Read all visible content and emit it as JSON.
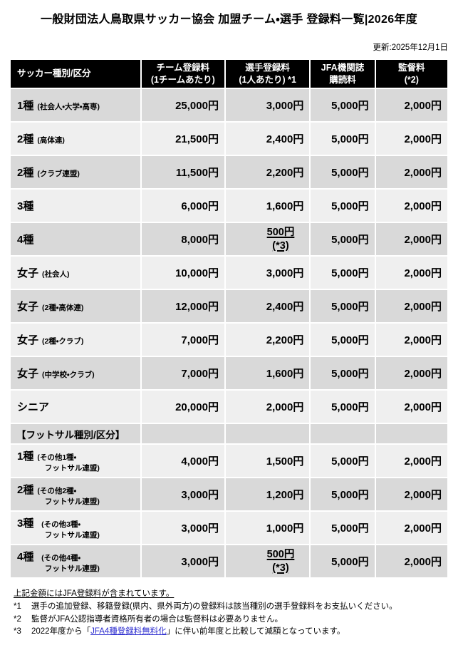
{
  "header": {
    "title": "一般財団法人鳥取県サッカー協会 加盟チーム・選手 登録料一覧|2026年度",
    "updated": "更新:2025年12月1日"
  },
  "table": {
    "columns": [
      {
        "lines": [
          "サッカー種別/区分"
        ]
      },
      {
        "lines": [
          "チーム登録料",
          "(1チームあたり)"
        ]
      },
      {
        "lines": [
          "選手登録料",
          "(1人あたり) *1"
        ]
      },
      {
        "lines": [
          "JFA機関誌",
          "購読料"
        ]
      },
      {
        "lines": [
          "監督料",
          "(*2)"
        ]
      }
    ],
    "rows": [
      {
        "main": "1種",
        "sub": "(社会人・大学・高専)",
        "fees": [
          "25,000円",
          "3,000円",
          "5,000円",
          "2,000円"
        ],
        "shade": "dark"
      },
      {
        "main": "2種",
        "sub": "(高体連)",
        "fees": [
          "21,500円",
          "2,400円",
          "5,000円",
          "2,000円"
        ],
        "shade": "light"
      },
      {
        "main": "2種",
        "sub": "(クラブ連盟)",
        "fees": [
          "11,500円",
          "2,200円",
          "5,000円",
          "2,000円"
        ],
        "shade": "dark"
      },
      {
        "main": "3種",
        "fees": [
          "6,000円",
          "1,600円",
          "5,000円",
          "2,000円"
        ],
        "shade": "light"
      },
      {
        "main": "4種",
        "fees": [
          "8,000円",
          {
            "v": "500円",
            "note": "(*3)"
          },
          "5,000円",
          "2,000円"
        ],
        "shade": "dark"
      },
      {
        "main": "女子",
        "sub": "(社会人)",
        "fees": [
          "10,000円",
          "3,000円",
          "5,000円",
          "2,000円"
        ],
        "shade": "light"
      },
      {
        "main": "女子",
        "sub": "(2種・高体連)",
        "fees": [
          "12,000円",
          "2,400円",
          "5,000円",
          "2,000円"
        ],
        "shade": "dark"
      },
      {
        "main": "女子",
        "sub": "(2種・クラブ)",
        "fees": [
          "7,000円",
          "2,200円",
          "5,000円",
          "2,000円"
        ],
        "shade": "light"
      },
      {
        "main": "女子",
        "sub": "(中学校・クラブ)",
        "fees": [
          "7,000円",
          "1,600円",
          "5,000円",
          "2,000円"
        ],
        "shade": "dark"
      },
      {
        "main": "シニア",
        "fees": [
          "20,000円",
          "2,000円",
          "5,000円",
          "2,000円"
        ],
        "shade": "light"
      },
      {
        "section": "【フットサル種別/区分】",
        "shade": "dark"
      },
      {
        "main": "1種",
        "sub": "(その他1種・\n　フットサル連盟)",
        "fees": [
          "4,000円",
          "1,500円",
          "5,000円",
          "2,000円"
        ],
        "shade": "light"
      },
      {
        "main": "2種",
        "sub": "(その他2種・\n　フットサル連盟)",
        "fees": [
          "3,000円",
          "1,200円",
          "5,000円",
          "2,000円"
        ],
        "shade": "dark"
      },
      {
        "main": "3種",
        "sub": "  (その他3種・\n　フットサル連盟)",
        "fees": [
          "3,000円",
          "1,000円",
          "5,000円",
          "2,000円"
        ],
        "shade": "light"
      },
      {
        "main": "4種",
        "sub": "  (その他4種・\n　フットサル連盟)",
        "fees": [
          "3,000円",
          {
            "v": "500円",
            "note": "(*3)"
          },
          "5,000円",
          "2,000円"
        ],
        "shade": "dark"
      }
    ]
  },
  "footnotes": {
    "intro": "上記金額にはJFA登録料が含まれています。",
    "notes": [
      {
        "id": "*1",
        "text": "選手の追加登録、移籍登録(県内、県外両方)の登録料は該当種別の選手登録料をお支払いください。"
      },
      {
        "id": "*2",
        "text": "監督がJFA公認指導者資格所有者の場合は監督料は必要ありません。"
      },
      {
        "id": "*3",
        "pre": "2022年度から「",
        "link": "JFA4種登録料無料化",
        "post": "」に伴い前年度と比較して減額となっています。"
      }
    ]
  },
  "colors": {
    "header_bg": "#000000",
    "header_text": "#ffffff",
    "row_dark": "#d9d9d9",
    "row_light": "#efefef",
    "link": "#2d2dcf"
  }
}
